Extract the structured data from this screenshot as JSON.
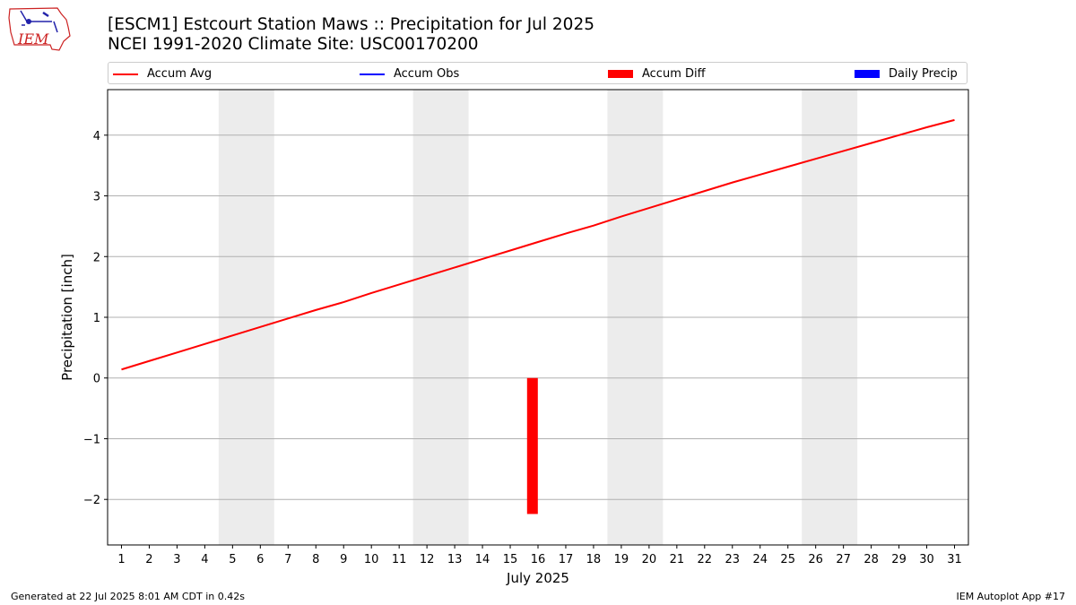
{
  "header": {
    "title_line1": "[ESCM1] Estcourt Station Maws :: Precipitation for Jul 2025",
    "title_line2": "NCEI 1991-2020 Climate Site: USC00170200",
    "logo_text": "IEM"
  },
  "legend": [
    {
      "label": "Accum Avg",
      "color": "#ff0000",
      "kind": "line"
    },
    {
      "label": "Accum Obs",
      "color": "#0000ff",
      "kind": "line"
    },
    {
      "label": "Accum Diff",
      "color": "#ff0000",
      "kind": "patch"
    },
    {
      "label": "Daily Precip",
      "color": "#0000ff",
      "kind": "patch"
    }
  ],
  "footer": {
    "generated": "Generated at 22 Jul 2025 8:01 AM CDT in 0.42s",
    "app": "IEM Autoplot App #17"
  },
  "chart_data": {
    "type": "line",
    "xlabel": "July 2025",
    "ylabel": "Precipitation [inch]",
    "xlim": [
      0.5,
      31.5
    ],
    "ylim": [
      -2.75,
      4.75
    ],
    "yticks": [
      -2,
      -1,
      0,
      1,
      2,
      3,
      4
    ],
    "ytick_labels": [
      "−2",
      "−1",
      "0",
      "1",
      "2",
      "3",
      "4"
    ],
    "x": [
      1,
      2,
      3,
      4,
      5,
      6,
      7,
      8,
      9,
      10,
      11,
      12,
      13,
      14,
      15,
      16,
      17,
      18,
      19,
      20,
      21,
      22,
      23,
      24,
      25,
      26,
      27,
      28,
      29,
      30,
      31
    ],
    "xtick_labels": [
      "1",
      "2",
      "3",
      "4",
      "5",
      "6",
      "7",
      "8",
      "9",
      "10",
      "11",
      "12",
      "13",
      "14",
      "15",
      "16",
      "17",
      "18",
      "19",
      "20",
      "21",
      "22",
      "23",
      "24",
      "25",
      "26",
      "27",
      "28",
      "29",
      "30",
      "31"
    ],
    "grid": "horizontal",
    "legend_position": "top",
    "weekend_shading": [
      [
        4.5,
        6.5
      ],
      [
        11.5,
        13.5
      ],
      [
        18.5,
        20.5
      ],
      [
        25.5,
        27.5
      ]
    ],
    "series": [
      {
        "name": "Accum Avg",
        "color": "#ff0000",
        "values": [
          0.14,
          0.28,
          0.42,
          0.56,
          0.7,
          0.84,
          0.98,
          1.12,
          1.25,
          1.4,
          1.54,
          1.68,
          1.82,
          1.96,
          2.1,
          2.24,
          2.38,
          2.51,
          2.66,
          2.8,
          2.94,
          3.08,
          3.22,
          3.35,
          3.48,
          3.61,
          3.74,
          3.87,
          4.0,
          4.13,
          4.25
        ]
      }
    ],
    "bars": [
      {
        "name": "Accum Diff",
        "color": "#ff0000",
        "x": 15.8,
        "value": -2.24
      }
    ]
  }
}
